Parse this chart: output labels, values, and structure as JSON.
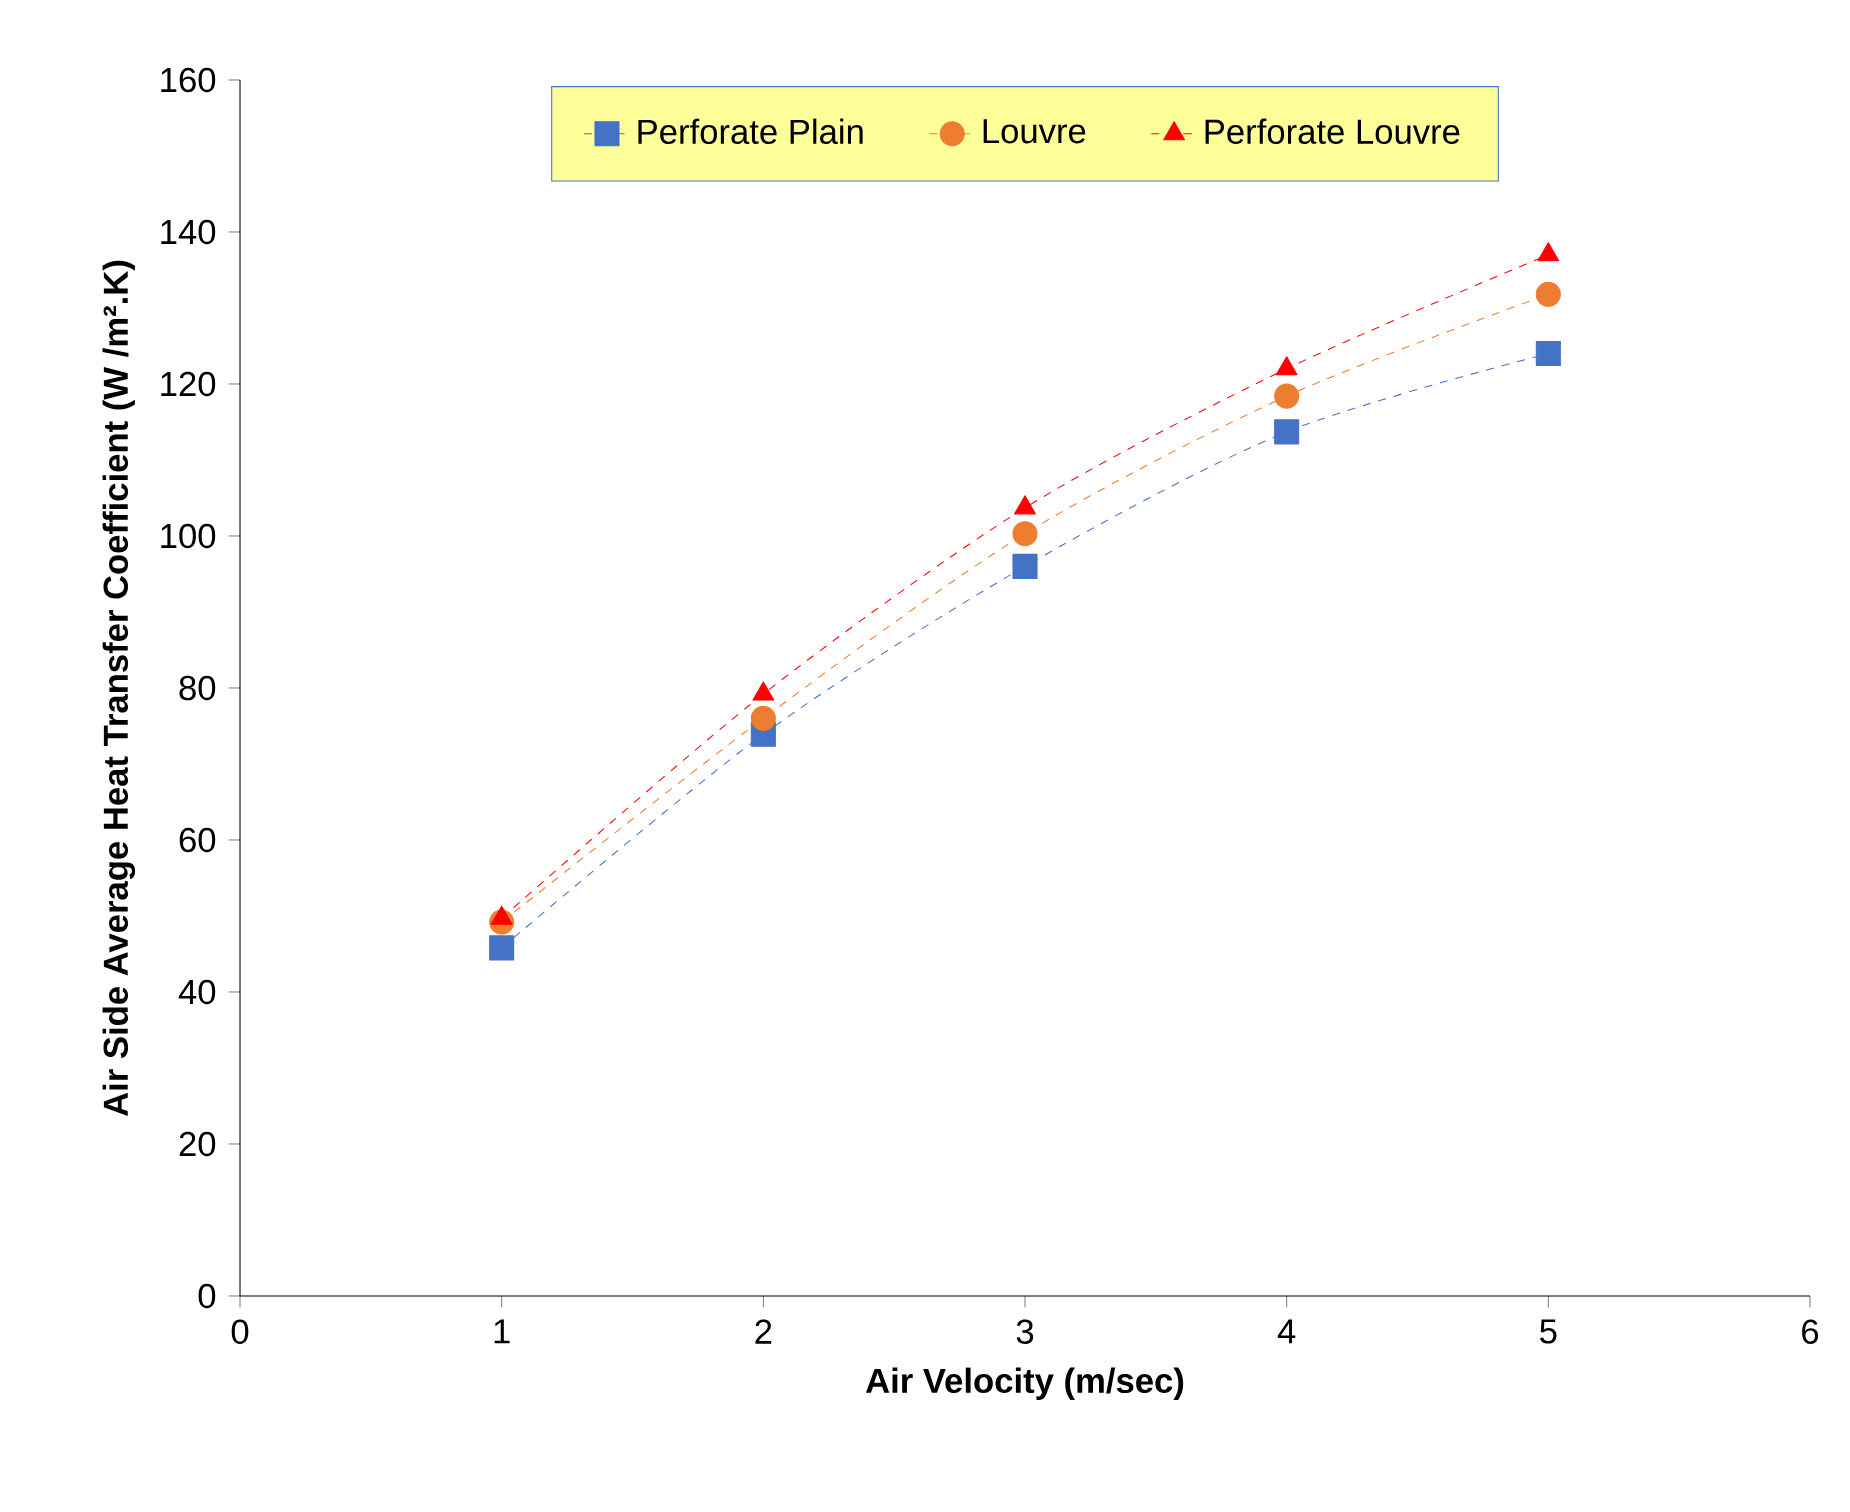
{
  "chart_data": {
    "type": "line",
    "xlabel": "Air Velocity (m/sec)",
    "ylabel": "Air Side Average Heat Transfer Coefficient (W /m².K)",
    "x": [
      1,
      2,
      3,
      4,
      5
    ],
    "series": [
      {
        "name": "Perforate Plain",
        "color": "#4472c4",
        "marker": "square",
        "values": [
          45.8,
          73.9,
          96,
          113.7,
          124
        ]
      },
      {
        "name": "Louvre",
        "color": "#ed7d31",
        "marker": "circle",
        "values": [
          49.2,
          76,
          100.3,
          118.4,
          131.8
        ]
      },
      {
        "name": "Perforate Louvre",
        "color": "#ff0000",
        "marker": "triangle",
        "values": [
          49.7,
          79.2,
          103.7,
          122,
          137
        ]
      }
    ],
    "xlim": [
      0,
      6
    ],
    "xticks": [
      0,
      1,
      2,
      3,
      4,
      5,
      6
    ],
    "ylim": [
      0,
      160
    ],
    "yticks": [
      0,
      20,
      40,
      60,
      80,
      100,
      120,
      140,
      160
    ],
    "line_style": "dashed",
    "legend": "top",
    "grid": false
  }
}
